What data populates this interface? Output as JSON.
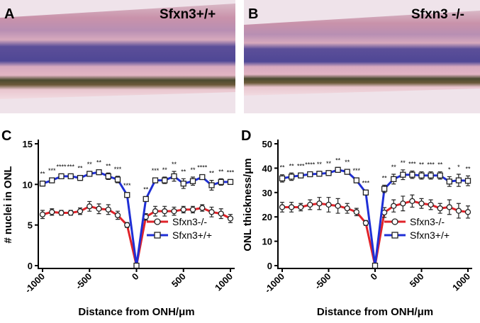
{
  "panels": [
    {
      "label": "A",
      "genotype": "Sfxn3+/+"
    },
    {
      "label": "B",
      "genotype": "Sfxn3 -/-"
    }
  ],
  "chart_data": [
    {
      "type": "line",
      "panel_label": "C",
      "xlabel": "Distance from ONH/μm",
      "ylabel": "# nuclei in ONL",
      "x": [
        -1000,
        -900,
        -800,
        -700,
        -600,
        -500,
        -400,
        -300,
        -200,
        -100,
        0,
        100,
        200,
        300,
        400,
        500,
        600,
        700,
        800,
        900,
        1000
      ],
      "xlim": [
        -1000,
        1000
      ],
      "xticks": [
        -1000,
        -500,
        0,
        500,
        1000
      ],
      "ylim": [
        0,
        15
      ],
      "yticks": [
        0,
        5,
        10,
        15
      ],
      "legend": "lower right",
      "series": [
        {
          "name": "Sfxn3-/-",
          "color": "#e0232a",
          "marker": "circle",
          "values": [
            6.3,
            6.6,
            6.5,
            6.5,
            6.7,
            7.3,
            7.0,
            6.9,
            6.2,
            5.0,
            0,
            6.0,
            6.7,
            6.7,
            6.7,
            6.9,
            6.9,
            7.1,
            6.6,
            6.4,
            5.8
          ],
          "errors": [
            0.5,
            0.4,
            0.3,
            0.3,
            0.4,
            0.6,
            0.6,
            0.6,
            0.5,
            0.3,
            0.2,
            0.4,
            0.6,
            0.6,
            0.5,
            0.4,
            0.4,
            0.4,
            0.6,
            0.6,
            0.5
          ]
        },
        {
          "name": "Sfxn3+/+",
          "color": "#1f2fd6",
          "marker": "square",
          "values": [
            10.1,
            10.5,
            11.0,
            11.0,
            10.8,
            11.3,
            11.5,
            11.0,
            10.6,
            8.7,
            0,
            8.2,
            10.5,
            10.5,
            11.0,
            10.1,
            10.4,
            10.9,
            9.9,
            10.3,
            10.3
          ],
          "errors": [
            0.3,
            0.3,
            0.3,
            0.3,
            0.3,
            0.3,
            0.3,
            0.4,
            0.4,
            0.3,
            0.2,
            0.3,
            0.3,
            0.4,
            0.6,
            0.6,
            0.5,
            0.3,
            0.6,
            0.4,
            0.3
          ]
        }
      ],
      "significance": [
        "**",
        "***",
        "****",
        "***",
        "**",
        "**",
        "**",
        "**",
        "***",
        "***",
        null,
        "**",
        "***",
        "**",
        "**",
        "**",
        "**",
        "****",
        "**",
        "**",
        "***"
      ]
    },
    {
      "type": "line",
      "panel_label": "D",
      "xlabel": "Distance from ONH/μm",
      "ylabel": "ONL thickness/μm",
      "x": [
        -1000,
        -900,
        -800,
        -700,
        -600,
        -500,
        -400,
        -300,
        -200,
        -100,
        0,
        100,
        200,
        300,
        400,
        500,
        600,
        700,
        800,
        900,
        1000
      ],
      "xlim": [
        -1000,
        1000
      ],
      "xticks": [
        -1000,
        -500,
        0,
        500,
        1000
      ],
      "ylim": [
        0,
        50
      ],
      "yticks": [
        0,
        10,
        20,
        30,
        40,
        50
      ],
      "legend": "lower right",
      "series": [
        {
          "name": "Sfxn3-/-",
          "color": "#e0232a",
          "marker": "circle",
          "values": [
            24,
            24,
            24,
            25,
            25.5,
            25,
            24.5,
            23.5,
            22,
            17.5,
            0,
            21.8,
            24.5,
            25.5,
            26.5,
            25.5,
            25,
            23.5,
            24,
            22.5,
            22
          ],
          "errors": [
            2,
            2,
            1.5,
            2,
            2.5,
            3,
            3,
            2,
            1.5,
            1,
            0.5,
            2,
            2.5,
            3,
            2.5,
            2,
            2,
            2,
            3,
            3,
            2.5
          ]
        },
        {
          "name": "Sfxn3+/+",
          "color": "#1f2fd6",
          "marker": "square",
          "values": [
            35.8,
            36.5,
            37,
            37.5,
            37.7,
            38,
            39.3,
            38.5,
            35,
            30,
            0,
            31.5,
            35.5,
            37.3,
            37.3,
            37,
            37,
            37,
            34.5,
            35,
            34.8
          ],
          "errors": [
            1.5,
            1.5,
            1,
            1,
            1,
            1,
            1,
            1,
            1,
            1,
            0.5,
            1.5,
            2,
            2,
            1.5,
            1.5,
            1.5,
            1.5,
            2,
            2.5,
            2
          ]
        }
      ],
      "significance": [
        "**",
        "**",
        "***",
        "****",
        "**",
        "**",
        "**",
        "**",
        "***",
        "***",
        null,
        "**",
        "**",
        "**",
        "***",
        "**",
        "***",
        "**",
        "*",
        "*",
        "**"
      ]
    }
  ]
}
